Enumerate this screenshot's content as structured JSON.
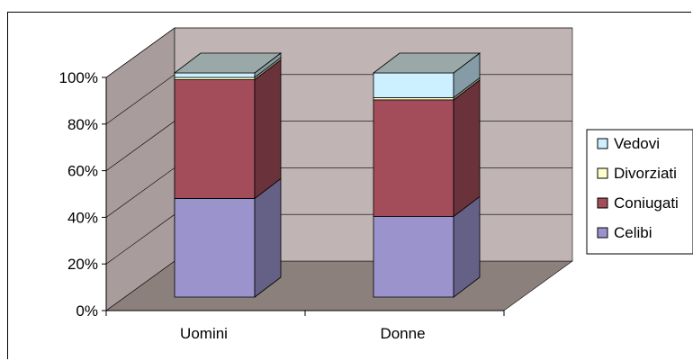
{
  "chart_data": {
    "type": "bar",
    "stacked": true,
    "stack_mode": "percent",
    "three_d": true,
    "categories": [
      "Uomini",
      "Donne"
    ],
    "series": [
      {
        "name": "Celibi",
        "values": [
          44,
          36
        ],
        "color": "#9b94cc"
      },
      {
        "name": "Coniugati",
        "values": [
          53,
          52
        ],
        "color": "#a34d5b"
      },
      {
        "name": "Divorziati",
        "values": [
          1,
          1
        ],
        "color": "#ffffcc"
      },
      {
        "name": "Vedovi",
        "values": [
          2,
          11
        ],
        "color": "#ccf0ff"
      }
    ],
    "y_ticks": [
      "0%",
      "20%",
      "40%",
      "60%",
      "80%",
      "100%"
    ],
    "ylim": [
      0,
      100
    ],
    "grid": true,
    "legend_position": "right",
    "legend_order": [
      "Vedovi",
      "Divorziati",
      "Coniugati",
      "Celibi"
    ],
    "colors": {
      "back_wall": "#c0b4b4",
      "side_wall": "#a89c9c",
      "floor": "#8c807c"
    }
  }
}
